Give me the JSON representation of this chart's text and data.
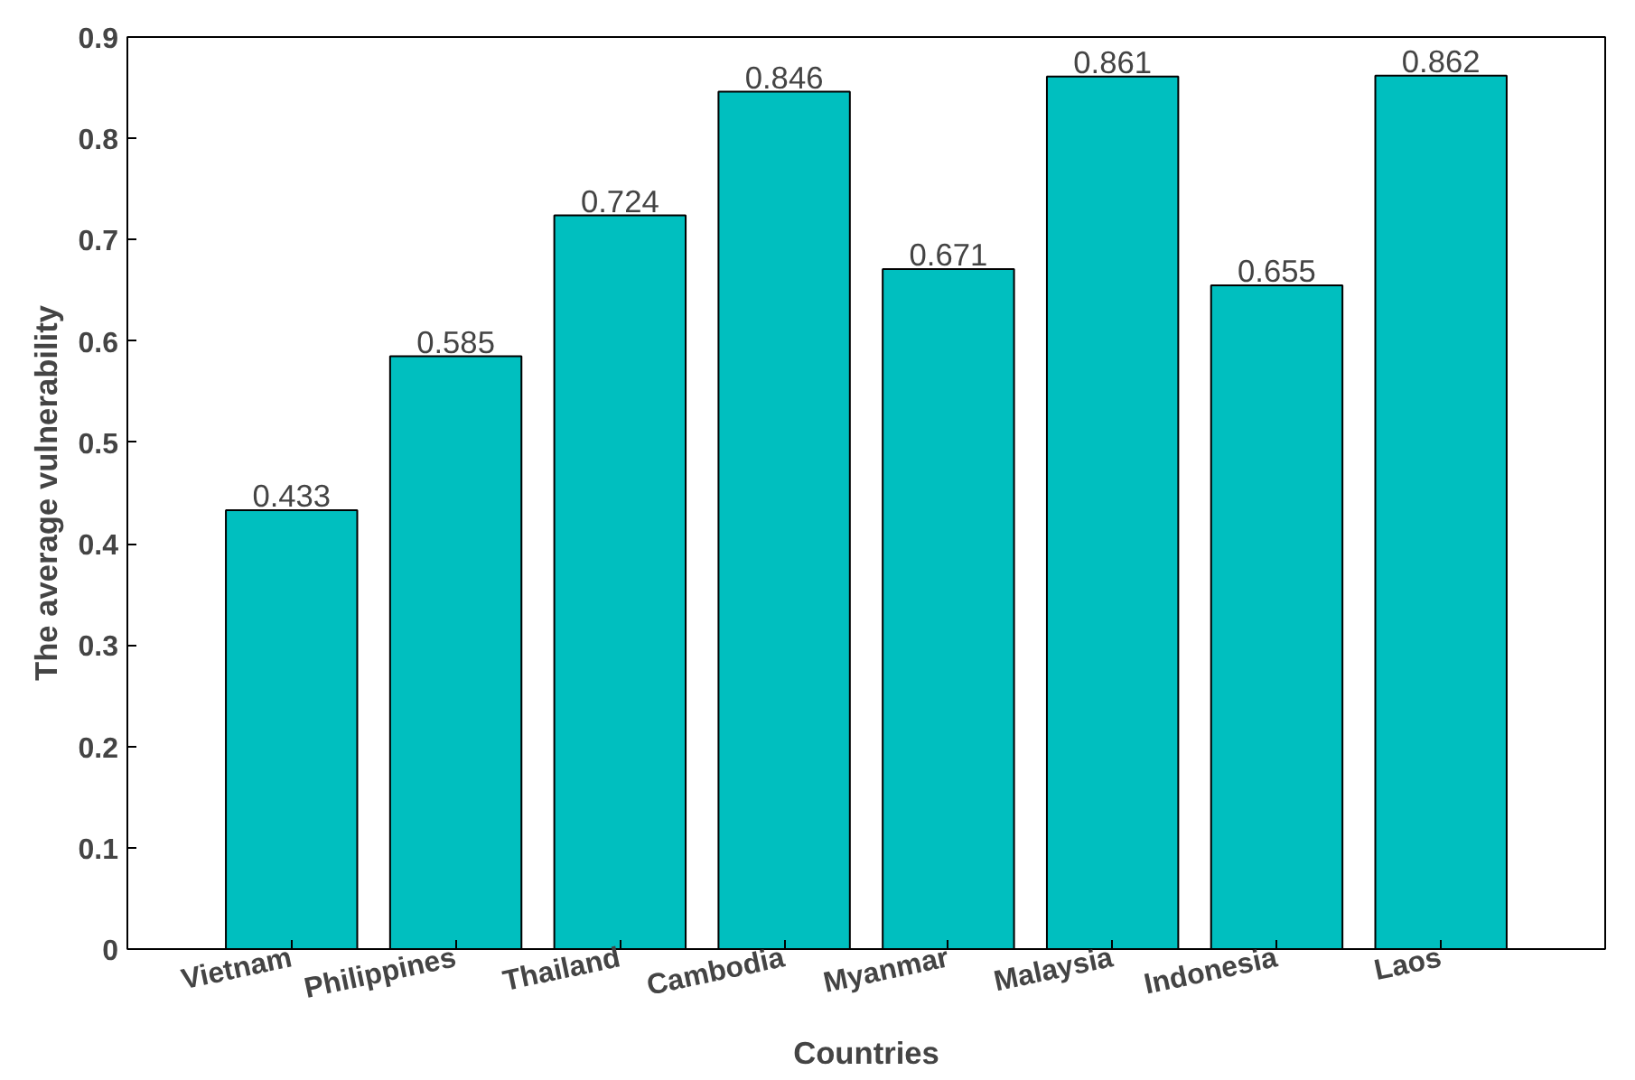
{
  "chart_data": {
    "type": "bar",
    "xlabel": "Countries",
    "ylabel": "The average vulnerability",
    "categories": [
      "Vietnam",
      "Philippines",
      "Thailand",
      "Cambodia",
      "Myanmar",
      "Malaysia",
      "Indonesia",
      "Laos"
    ],
    "values": [
      0.433,
      0.585,
      0.724,
      0.846,
      0.671,
      0.861,
      0.655,
      0.862
    ],
    "color": "#00bfbf",
    "ylim": [
      0,
      0.9
    ],
    "yticks": [
      0,
      0.1,
      0.2,
      0.3,
      0.4,
      0.5,
      0.6,
      0.7,
      0.8,
      0.9
    ],
    "data_labels": true,
    "grid": false
  }
}
